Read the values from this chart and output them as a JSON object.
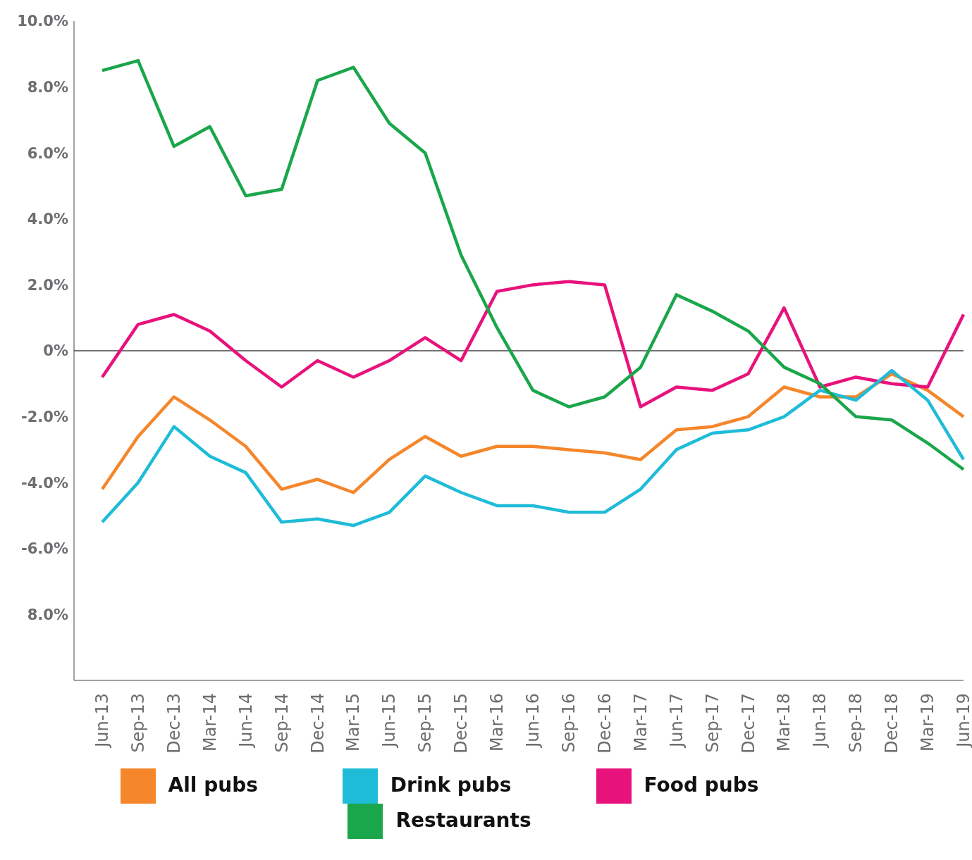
{
  "chart_data": {
    "type": "line",
    "categories": [
      "Jun-13",
      "Sep-13",
      "Dec-13",
      "Mar-14",
      "Jun-14",
      "Sep-14",
      "Dec-14",
      "Mar-15",
      "Jun-15",
      "Sep-15",
      "Dec-15",
      "Mar-16",
      "Jun-16",
      "Sep-16",
      "Dec-16",
      "Mar-17",
      "Jun-17",
      "Sep-17",
      "Dec-17",
      "Mar-18",
      "Jun-18",
      "Sep-18",
      "Dec-18",
      "Mar-19",
      "Jun-19"
    ],
    "series": [
      {
        "name": "All pubs",
        "color": "#f5862a",
        "values": [
          -4.2,
          -2.6,
          -1.4,
          -2.1,
          -2.9,
          -4.2,
          -3.9,
          -4.3,
          -3.3,
          -2.6,
          -3.2,
          -2.9,
          -2.9,
          -3.0,
          -3.1,
          -3.3,
          -2.4,
          -2.3,
          -2.0,
          -1.1,
          -1.4,
          -1.4,
          -0.7,
          -1.2,
          -2.0
        ]
      },
      {
        "name": "Food pubs",
        "color": "#e8127c",
        "values": [
          -0.8,
          0.8,
          1.1,
          0.6,
          -0.3,
          -1.1,
          -0.3,
          -0.8,
          -0.3,
          0.4,
          -0.3,
          1.8,
          2.0,
          2.1,
          2.0,
          -1.7,
          -1.1,
          -1.2,
          -0.7,
          1.3,
          -1.1,
          -0.8,
          -1.0,
          -1.1,
          1.1
        ]
      },
      {
        "name": "Drink pubs",
        "color": "#1fbcd8",
        "values": [
          -5.2,
          -4.0,
          -2.3,
          -3.2,
          -3.7,
          -5.2,
          -5.1,
          -5.3,
          -4.9,
          -3.8,
          -4.3,
          -4.7,
          -4.7,
          -4.9,
          -4.9,
          -4.2,
          -3.0,
          -2.5,
          -2.4,
          -2.0,
          -1.2,
          -1.5,
          -0.6,
          -1.5,
          -3.3
        ]
      },
      {
        "name": "Restaurants",
        "color": "#1aa64a",
        "values": [
          8.5,
          8.8,
          6.2,
          6.8,
          4.7,
          4.9,
          8.2,
          8.6,
          6.9,
          6.0,
          2.9,
          0.7,
          -1.2,
          -1.7,
          -1.4,
          -0.5,
          1.7,
          1.2,
          0.6,
          -0.5,
          -1.0,
          -2.0,
          -2.1,
          -2.8,
          -3.6
        ]
      }
    ],
    "ylim": [
      -10,
      10
    ],
    "yticks": [
      {
        "value": 10,
        "label": "10.0%"
      },
      {
        "value": 8,
        "label": "8.0%"
      },
      {
        "value": 6,
        "label": "6.0%"
      },
      {
        "value": 4,
        "label": "4.0%"
      },
      {
        "value": 2,
        "label": "2.0%"
      },
      {
        "value": 0,
        "label": "0%"
      },
      {
        "value": -2,
        "label": "-2.0%"
      },
      {
        "value": -4,
        "label": "-4.0%"
      },
      {
        "value": -6,
        "label": "-6.0%"
      },
      {
        "value": -8,
        "label": "8.0%"
      }
    ],
    "ref_lines": [
      {
        "axis": "y",
        "value": 0,
        "color": "#444444"
      }
    ],
    "grid": false,
    "legend": "bottom",
    "marker": "none",
    "line_style": "solid"
  }
}
